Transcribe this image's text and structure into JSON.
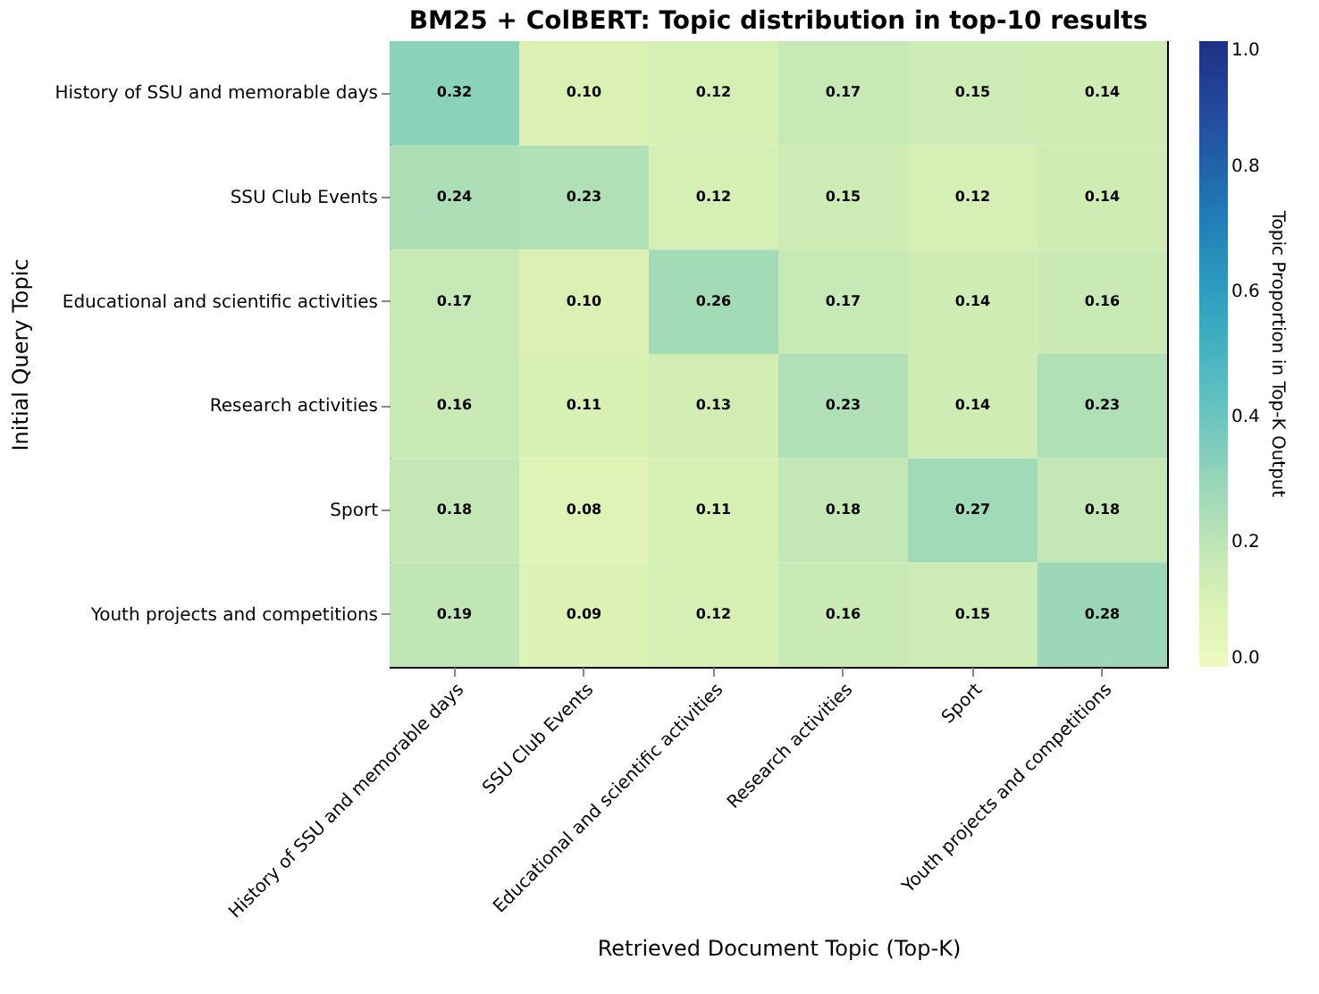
{
  "chart_data": {
    "type": "heatmap",
    "title": "BM25 + ColBERT: Topic distribution in top-10 results",
    "xlabel": "Retrieved Document Topic (Top-K)",
    "ylabel": "Initial Query Topic",
    "clabel": "Topic Proportion in Top-K Output",
    "categories": [
      "History of SSU and memorable days",
      "SSU Club Events",
      "Educational and scientific activities",
      "Research activities",
      "Sport",
      "Youth projects and competitions"
    ],
    "y_categories": [
      "History of SSU and memorable days",
      "SSU Club Events",
      "Educational and scientific activities",
      "Research activities",
      "Sport",
      "Youth projects and competitions"
    ],
    "cells": [
      [
        0.32,
        0.1,
        0.12,
        0.17,
        0.15,
        0.14
      ],
      [
        0.24,
        0.23,
        0.12,
        0.15,
        0.12,
        0.14
      ],
      [
        0.17,
        0.1,
        0.26,
        0.17,
        0.14,
        0.16
      ],
      [
        0.16,
        0.11,
        0.13,
        0.23,
        0.14,
        0.23
      ],
      [
        0.18,
        0.08,
        0.11,
        0.18,
        0.27,
        0.18
      ],
      [
        0.19,
        0.09,
        0.12,
        0.16,
        0.15,
        0.28
      ]
    ],
    "cell_labels": [
      [
        "0.32",
        "0.10",
        "0.12",
        "0.17",
        "0.15",
        "0.14"
      ],
      [
        "0.24",
        "0.23",
        "0.12",
        "0.15",
        "0.12",
        "0.14"
      ],
      [
        "0.17",
        "0.10",
        "0.26",
        "0.17",
        "0.14",
        "0.16"
      ],
      [
        "0.16",
        "0.11",
        "0.13",
        "0.23",
        "0.14",
        "0.23"
      ],
      [
        "0.18",
        "0.08",
        "0.11",
        "0.18",
        "0.27",
        "0.18"
      ],
      [
        "0.19",
        "0.09",
        "0.12",
        "0.16",
        "0.15",
        "0.28"
      ]
    ],
    "clim": [
      0,
      1
    ],
    "cticks": [
      {
        "value": 0,
        "label": "0.0"
      },
      0.2,
      0.4,
      0.6,
      0.8,
      {
        "value": 1,
        "label": "1.0"
      }
    ]
  }
}
